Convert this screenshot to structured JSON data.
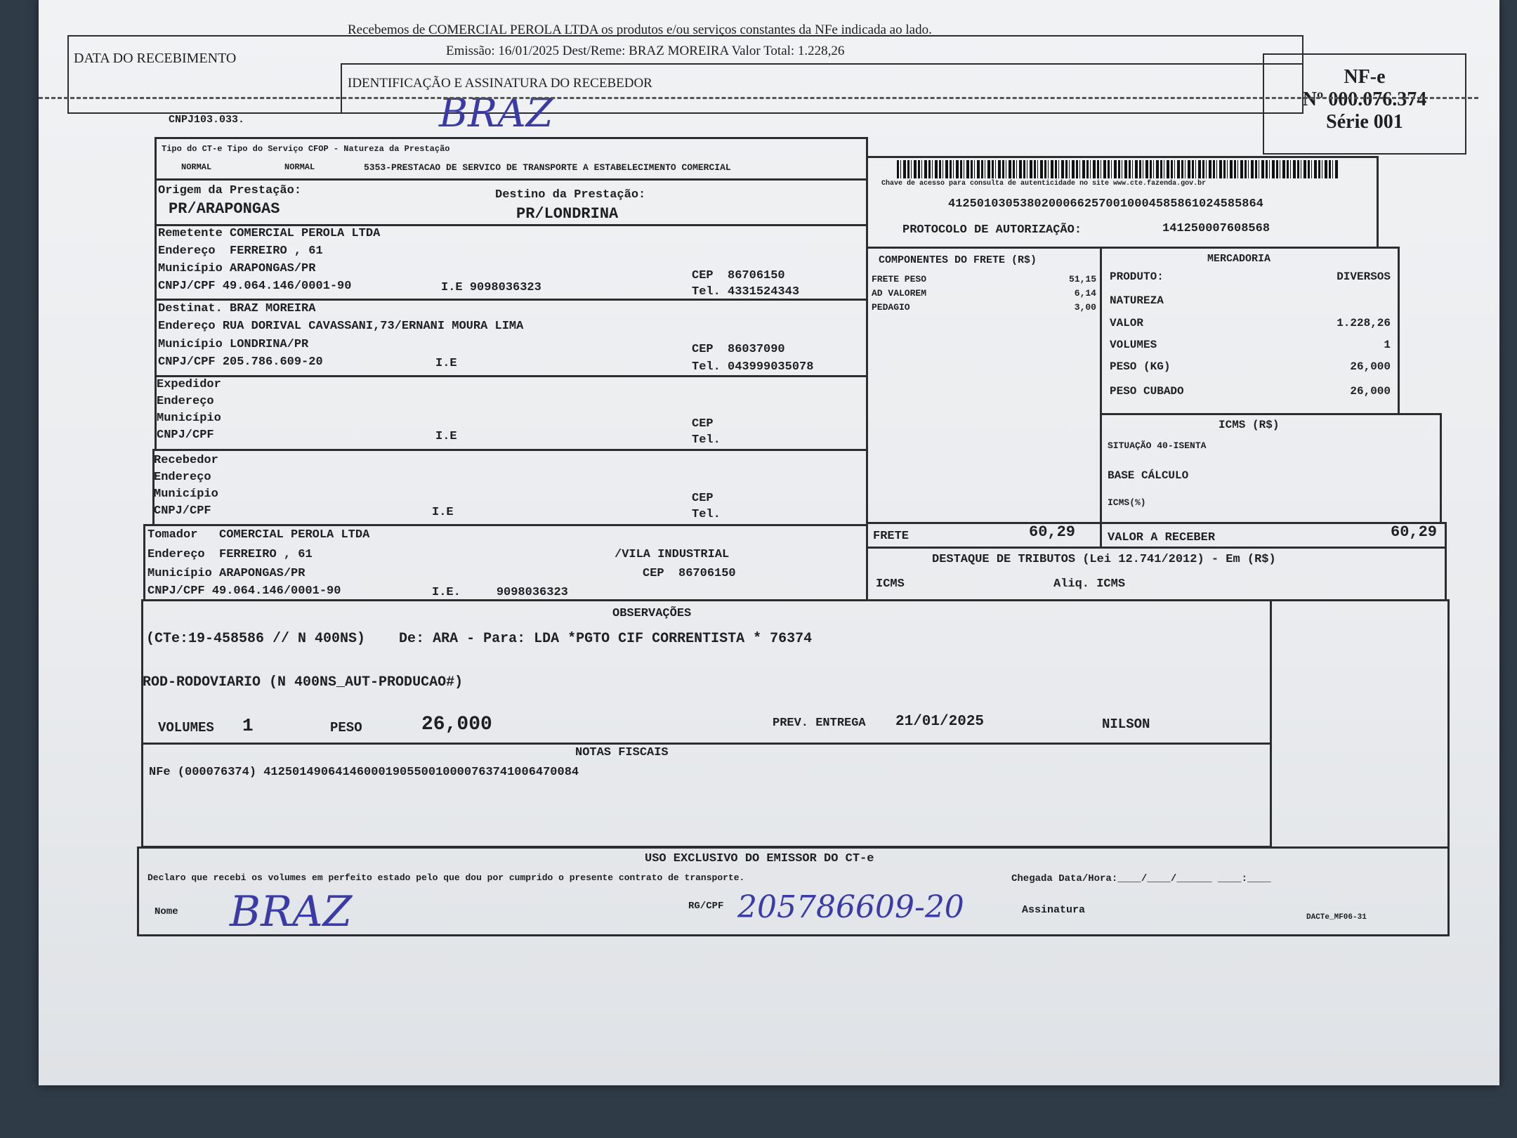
{
  "stub": {
    "data_recebimento_label": "DATA DO RECEBIMENTO",
    "recebemos_line": "Recebemos de COMERCIAL PEROLA LTDA os produtos e/ou serviços constantes da NFe indicada ao lado.",
    "emissao_line": "Emissão: 16/01/2025  Dest/Reme: BRAZ MOREIRA  Valor Total: 1.228,26",
    "identificacao_label": "IDENTIFICAÇÃO E ASSINATURA DO RECEBEDOR",
    "signature": "BRAZ",
    "nfe_title": "NF-e",
    "nfe_number": "Nº 000.076.374",
    "nfe_serie": "Série 001",
    "cnpj_fragment": "CNPJ103.033."
  },
  "header": {
    "tipo_label": "Tipo do CT-e Tipo do Serviço CFOP - Natureza da Prestação",
    "tipo_cte": "NORMAL",
    "tipo_servico": "NORMAL",
    "cfop": "5353-PRESTACAO DE SERVICO DE TRANSPORTE A ESTABELECIMENTO COMERCIAL",
    "origem_label": "Origem da Prestação:",
    "origem": "PR/ARAPONGAS",
    "destino_label": "Destino da Prestação:",
    "destino": "PR/LONDRINA"
  },
  "chave": {
    "label": "Chave de acesso para consulta de autenticidade no site www.cte.fazenda.gov.br",
    "value": "41250103053802000662570010004585861024585864",
    "protocolo_label": "PROTOCOLO DE AUTORIZAÇÃO:",
    "protocolo": "141250007608568"
  },
  "labels": {
    "endereco": "Endereço",
    "municipio": "Município",
    "cnpj": "CNPJ/CPF",
    "ie": "I.E",
    "ie_dot": "I.E.",
    "cep": "CEP",
    "tel": "Tel."
  },
  "remetente": {
    "label": "Remetente",
    "nome": "COMERCIAL PEROLA LTDA",
    "endereco": "FERREIRO , 61",
    "municipio": "ARAPONGAS/PR",
    "cnpj": "49.064.146/0001-90",
    "ie": "9098036323",
    "cep": "86706150",
    "tel": "4331524343"
  },
  "destinatario": {
    "label": "Destinat.",
    "nome": "BRAZ MOREIRA",
    "endereco": "RUA DORIVAL CAVASSANI,73/ERNANI MOURA LIMA",
    "municipio": "LONDRINA/PR",
    "cnpj": "205.786.609-20",
    "cep": "86037090",
    "tel": "043999035078"
  },
  "expedidor": {
    "label": "Expedidor"
  },
  "recebedor": {
    "label": "Recebedor"
  },
  "tomador": {
    "label": "Tomador",
    "nome": "COMERCIAL PEROLA LTDA",
    "endereco": "FERREIRO , 61",
    "bairro": "/VILA INDUSTRIAL",
    "municipio": "ARAPONGAS/PR",
    "cep": "86706150",
    "cnpj": "49.064.146/0001-90",
    "ie": "9098036323"
  },
  "componentes": {
    "title": "COMPONENTES DO FRETE (R$)",
    "items": [
      {
        "label": "FRETE PESO",
        "value": "51,15"
      },
      {
        "label": "AD VALOREM",
        "value": "6,14"
      },
      {
        "label": "PEDAGIO",
        "value": "3,00"
      }
    ],
    "frete_label": "FRETE",
    "frete_value": "60,29"
  },
  "mercadoria": {
    "title": "MERCADORIA",
    "produto_label": "PRODUTO:",
    "produto": "DIVERSOS",
    "natureza_label": "NATUREZA",
    "valor_label": "VALOR",
    "valor": "1.228,26",
    "volumes_label": "VOLUMES",
    "volumes": "1",
    "peso_label": "PESO (KG)",
    "peso": "26,000",
    "peso_cubado_label": "PESO CUBADO",
    "peso_cubado": "26,000"
  },
  "icms": {
    "title": "ICMS (R$)",
    "situacao": "SITUAÇÃO 40-ISENTA",
    "base_label": "BASE CÁLCULO",
    "aliq_label": "ICMS(%)",
    "valor_receber_label": "VALOR A RECEBER",
    "valor_receber": "60,29"
  },
  "tributos": {
    "title": "DESTAQUE DE TRIBUTOS (Lei 12.741/2012) - Em (R$)",
    "icms_label": "ICMS",
    "aliq_label": "Aliq. ICMS"
  },
  "observacoes": {
    "title": "OBSERVAÇÕES",
    "line1": "(CTe:19-458586 // N 400NS)    De: ARA - Para: LDA *PGTO CIF CORRENTISTA * 76374",
    "line2": "ROD-RODOVIARIO (N 400NS_AUT-PRODUCAO#)",
    "volumes_label": "VOLUMES",
    "volumes": "1",
    "peso_label": "PESO",
    "peso": "26,000",
    "prev_label": "PREV. ENTREGA",
    "prev": "21/01/2025",
    "motorista": "NILSON"
  },
  "notas": {
    "title": "NOTAS FISCAIS",
    "line": "NFe (000076374) 41250149064146000190550010000763741006470084"
  },
  "uso": {
    "title": "USO EXCLUSIVO DO EMISSOR DO CT-e",
    "declaro": "Declaro que recebi os volumes em perfeito estado pelo que dou por cumprido o presente contrato de transporte.",
    "chegada": "Chegada Data/Hora:____/____/______  ____:____",
    "nome_label": "Nome",
    "nome_hand": "BRAZ",
    "rg_label": "RG/CPF",
    "rg_hand": "205786609-20",
    "assinatura_label": "Assinatura",
    "form_code": "DACTe_MF06-31"
  }
}
